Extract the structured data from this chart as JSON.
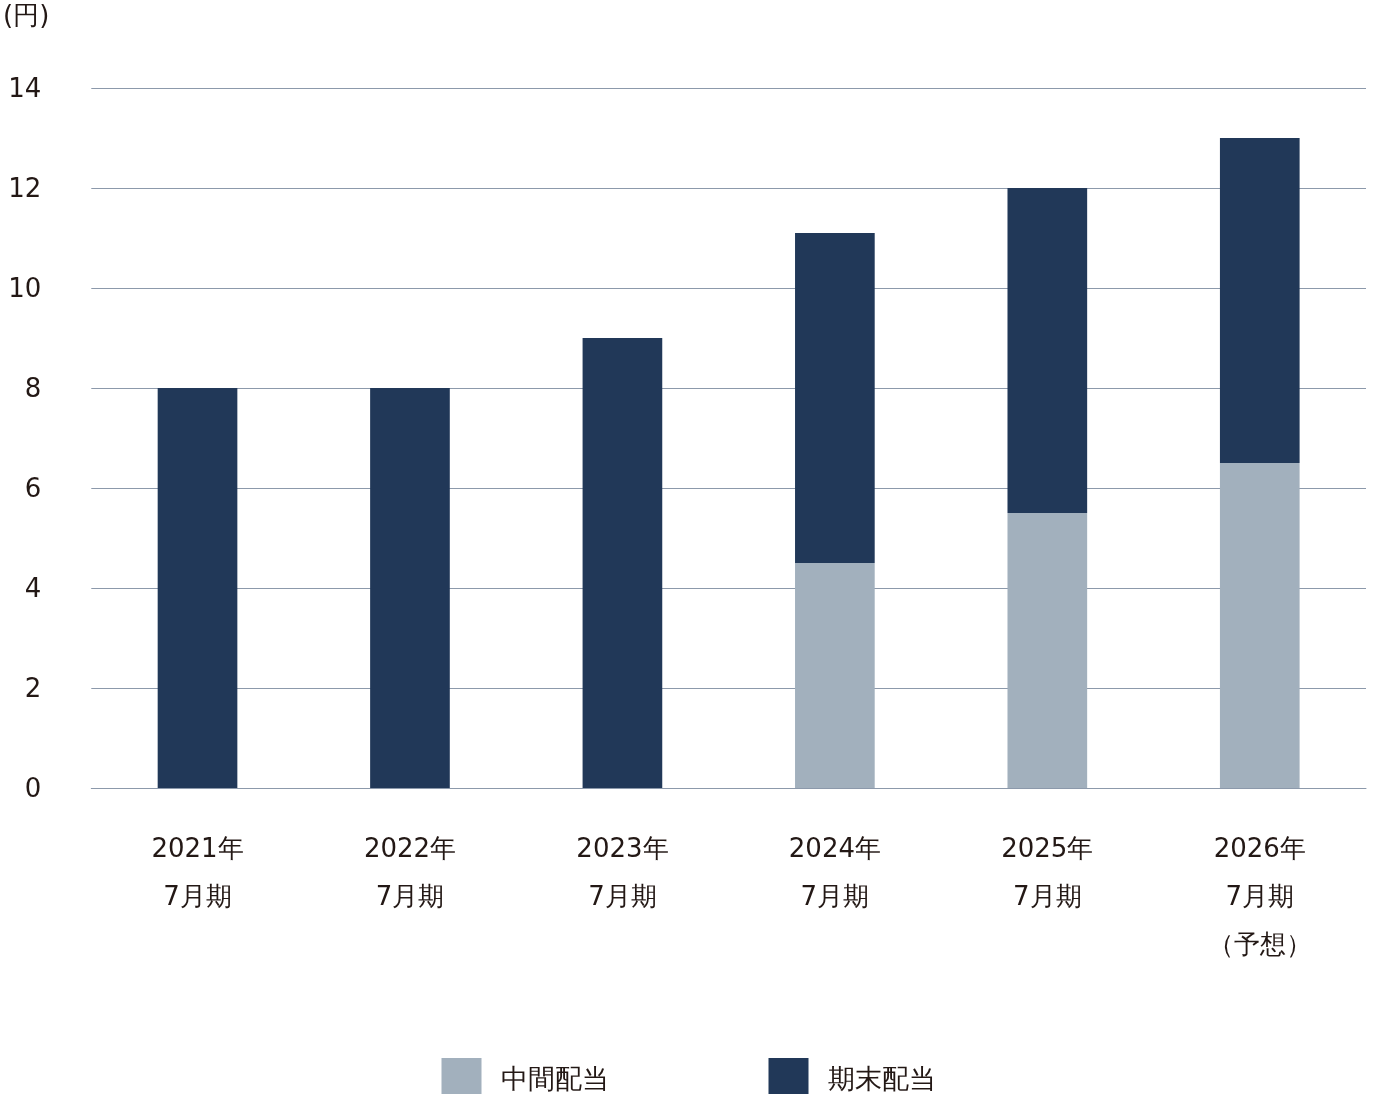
{
  "chart_data": {
    "type": "bar",
    "ylabel": "(円)",
    "categories": [
      "2021年\n7月期",
      "2022年\n7月期",
      "2023年\n7月期",
      "2024年\n7月期",
      "2025年\n7月期",
      "2026年\n7月期（予想）"
    ],
    "series": [
      {
        "name": "中間配当",
        "color": "#a2b0bd",
        "values": [
          null,
          null,
          null,
          4.5,
          5.5,
          6.5
        ]
      },
      {
        "name": "期末配当",
        "color": "#213858",
        "values": [
          8,
          8,
          9,
          6.6,
          6.5,
          6.5
        ]
      }
    ],
    "stacked": true,
    "ylim": [
      0,
      14
    ],
    "yticks": [
      0,
      2,
      4,
      6,
      8,
      10,
      12,
      14
    ],
    "grid": "y",
    "legend": "bottom"
  }
}
